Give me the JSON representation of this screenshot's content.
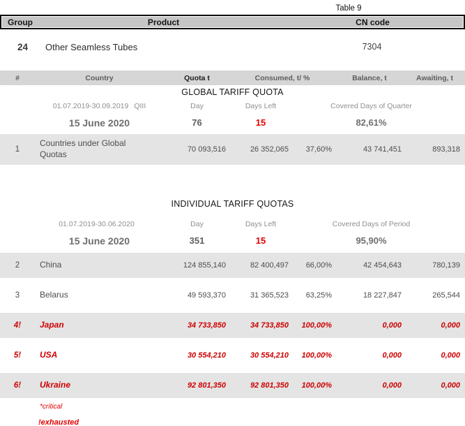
{
  "title": "Table 9",
  "colors": {
    "red_accent": "#e50000",
    "critical_red": "#cf0000",
    "header_bg": "#c6c6c6",
    "column_header_bg": "#d6d6d6",
    "shaded_row_bg": "#e4e4e4"
  },
  "top_table": {
    "headers": {
      "group": "Group",
      "product": "Product",
      "cn_code": "CN code"
    },
    "row": {
      "group": "24",
      "product": "Other Seamless Tubes",
      "cn_code": "7304"
    }
  },
  "columns": {
    "num": "#",
    "country": "Country",
    "quota": "Quota t",
    "consumed": "Consumed, t/ %",
    "balance": "Balance, t",
    "awaiting": "Awaiting, t"
  },
  "global_section": {
    "title": "GLOBAL TARIFF QUOTA",
    "period": "01.07.2019-30.09.2019",
    "period_suffix": "QIII",
    "day_label": "Day",
    "days_left_label": "Days Left",
    "covered_label": "Covered Days of Quarter",
    "date": "15 June 2020",
    "day": "76",
    "days_left": "15",
    "covered": "82,61%",
    "rows": [
      {
        "num": "1",
        "country": "Countries under Global Quotas",
        "quota": "70 093,516",
        "consumed": "26 352,065",
        "percent": "37,60%",
        "balance": "43 741,451",
        "awaiting": "893,318"
      }
    ]
  },
  "individual_section": {
    "title": "INDIVIDUAL TARIFF QUOTAS",
    "period": "01.07.2019-30.06.2020",
    "period_suffix": "",
    "day_label": "Day",
    "days_left_label": "Days Left",
    "covered_label": "Covered Days of Period",
    "date": "15 June 2020",
    "day": "351",
    "days_left": "15",
    "covered": "95,90%",
    "rows": [
      {
        "num": "2",
        "country": "China",
        "quota": "124 855,140",
        "consumed": "82 400,497",
        "percent": "66,00%",
        "balance": "42 454,643",
        "awaiting": "780,139"
      },
      {
        "num": "3",
        "country": "Belarus",
        "quota": "49 593,370",
        "consumed": "31 365,523",
        "percent": "63,25%",
        "balance": "18 227,847",
        "awaiting": "265,544"
      },
      {
        "num": "4!",
        "country": "Japan",
        "quota": "34 733,850",
        "consumed": "34 733,850",
        "percent": "100,00%",
        "balance": "0,000",
        "awaiting": "0,000"
      },
      {
        "num": "5!",
        "country": "USA",
        "quota": "30 554,210",
        "consumed": "30 554,210",
        "percent": "100,00%",
        "balance": "0,000",
        "awaiting": "0,000"
      },
      {
        "num": "6!",
        "country": "Ukraine",
        "quota": "92 801,350",
        "consumed": "92 801,350",
        "percent": "100,00%",
        "balance": "0,000",
        "awaiting": "0,000"
      }
    ]
  },
  "footnotes": {
    "critical": "*critical",
    "exhausted": "!exhausted"
  }
}
